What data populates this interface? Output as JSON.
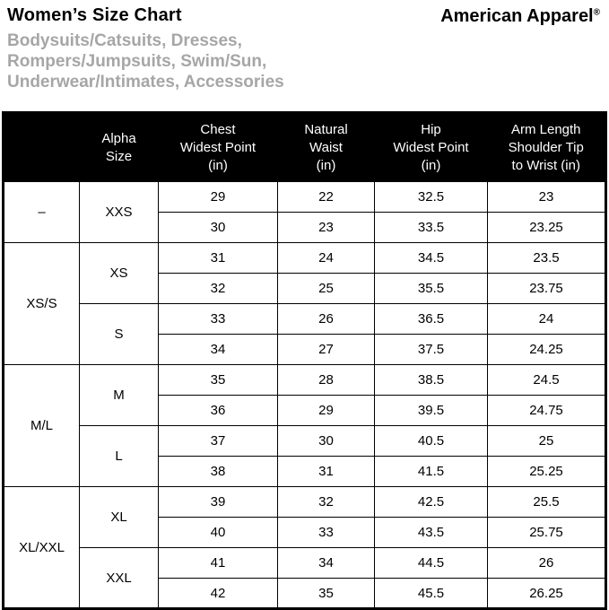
{
  "header": {
    "title": "Women’s Size Chart",
    "subtitle": "Bodysuits/Catsuits, Dresses,\nRompers/Jumpsuits, Swim/Sun,\nUnderwear/Intimates, Accessories",
    "brand": "American Apparel",
    "brand_mark": "®"
  },
  "colors": {
    "header_bg": "#000000",
    "header_text": "#ffffff",
    "subtitle_gray": "#a6a6a6",
    "border": "#000000"
  },
  "chart_data": {
    "type": "table",
    "title": "Women’s Size Chart",
    "columns": [
      "",
      "Alpha\nSize",
      "Chest\nWidest Point\n(in)",
      "Natural\nWaist\n(in)",
      "Hip\nWidest Point\n(in)",
      "Arm Length\nShoulder Tip\nto Wrist (in)"
    ],
    "measure_names": [
      "Chest Widest Point (in)",
      "Natural Waist (in)",
      "Hip Widest Point (in)",
      "Arm Length Shoulder Tip to Wrist (in)"
    ],
    "groups": [
      {
        "size_group": "–",
        "sizes": [
          {
            "alpha": "XXS",
            "rows": [
              [
                "29",
                "22",
                "32.5",
                "23"
              ],
              [
                "30",
                "23",
                "33.5",
                "23.25"
              ]
            ]
          }
        ]
      },
      {
        "size_group": "XS/S",
        "sizes": [
          {
            "alpha": "XS",
            "rows": [
              [
                "31",
                "24",
                "34.5",
                "23.5"
              ],
              [
                "32",
                "25",
                "35.5",
                "23.75"
              ]
            ]
          },
          {
            "alpha": "S",
            "rows": [
              [
                "33",
                "26",
                "36.5",
                "24"
              ],
              [
                "34",
                "27",
                "37.5",
                "24.25"
              ]
            ]
          }
        ]
      },
      {
        "size_group": "M/L",
        "sizes": [
          {
            "alpha": "M",
            "rows": [
              [
                "35",
                "28",
                "38.5",
                "24.5"
              ],
              [
                "36",
                "29",
                "39.5",
                "24.75"
              ]
            ]
          },
          {
            "alpha": "L",
            "rows": [
              [
                "37",
                "30",
                "40.5",
                "25"
              ],
              [
                "38",
                "31",
                "41.5",
                "25.25"
              ]
            ]
          }
        ]
      },
      {
        "size_group": "XL/XXL",
        "sizes": [
          {
            "alpha": "XL",
            "rows": [
              [
                "39",
                "32",
                "42.5",
                "25.5"
              ],
              [
                "40",
                "33",
                "43.5",
                "25.75"
              ]
            ]
          },
          {
            "alpha": "XXL",
            "rows": [
              [
                "41",
                "34",
                "44.5",
                "26"
              ],
              [
                "42",
                "35",
                "45.5",
                "26.25"
              ]
            ]
          }
        ]
      }
    ]
  }
}
